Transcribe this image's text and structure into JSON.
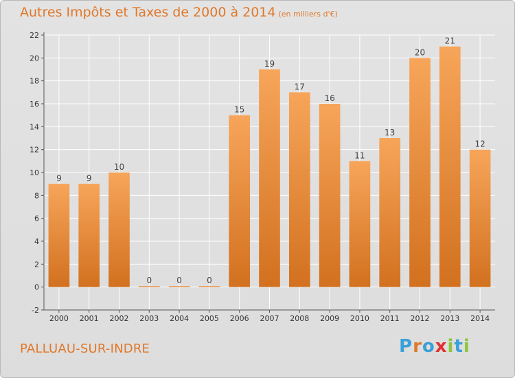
{
  "header": {
    "title": "Autres Impôts et Taxes de 2000 à 2014",
    "unit": "(en milliers d'€)"
  },
  "footer": {
    "location": "PALLUAU-SUR-INDRE",
    "brand": "Proxiti",
    "brand_letters": [
      "P",
      "r",
      "o",
      "x",
      "i",
      "t",
      "i"
    ],
    "brand_colors": [
      "#3aa0d8",
      "#e0782a",
      "#3aa0d8",
      "#e03030",
      "#8cc63e",
      "#3aa0d8",
      "#8cc63e"
    ]
  },
  "chart_data": {
    "type": "bar",
    "title": "Autres Impôts et Taxes de 2000 à 2014",
    "subtitle": "(en milliers d'€)",
    "categories": [
      "2000",
      "2001",
      "2002",
      "2003",
      "2004",
      "2005",
      "2006",
      "2007",
      "2008",
      "2009",
      "2010",
      "2011",
      "2012",
      "2013",
      "2014"
    ],
    "values": [
      9,
      9,
      10,
      0,
      0,
      0,
      15,
      19,
      17,
      16,
      11,
      13,
      20,
      21,
      12
    ],
    "ylim": [
      -2,
      22
    ],
    "yticks": [
      -2,
      0,
      2,
      4,
      6,
      8,
      10,
      12,
      14,
      16,
      18,
      20,
      22
    ],
    "grid": true,
    "bar_color_top": "#f7a55a",
    "bar_color_bottom": "#d2711f",
    "grid_color": "#ffffff"
  }
}
